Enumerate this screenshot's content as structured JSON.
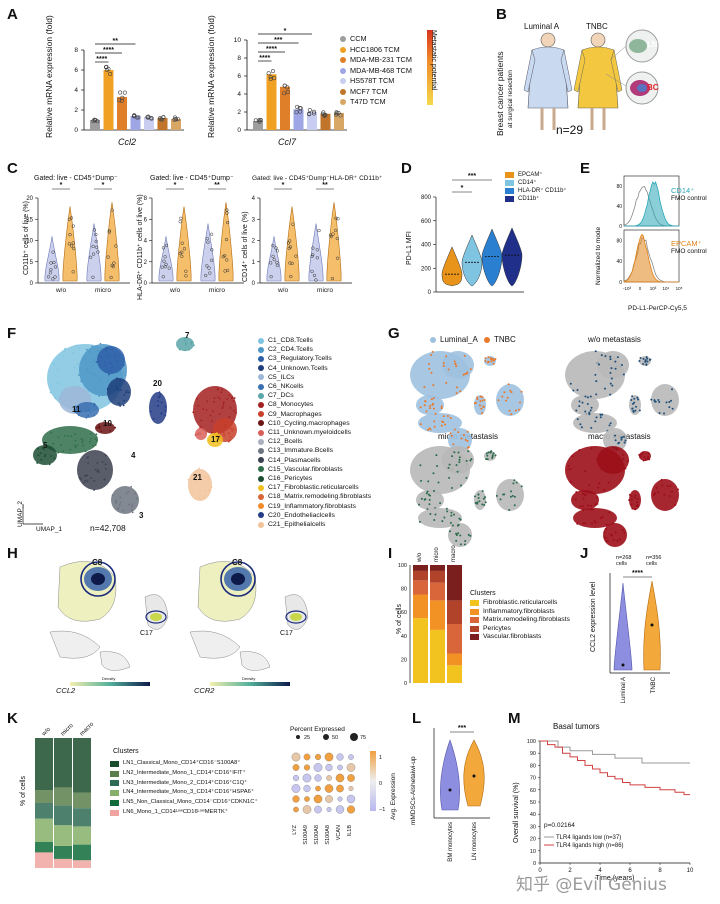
{
  "panel_labels": {
    "A": "A",
    "B": "B",
    "C": "C",
    "D": "D",
    "E": "E",
    "F": "F",
    "G": "G",
    "H": "H",
    "I": "I",
    "J": "J",
    "K": "K",
    "L": "L",
    "M": "M"
  },
  "panelA": {
    "ylabel": "Relative mRNA expression (fold)",
    "left_gene": "Ccl2",
    "right_gene": "Ccl7",
    "left_ticks": [
      "0",
      "2",
      "4",
      "6",
      "8"
    ],
    "right_ticks": [
      "0",
      "2",
      "4",
      "6",
      "8",
      "10"
    ],
    "left_sig": [
      "**",
      "****",
      "****"
    ],
    "right_sig": [
      "*",
      "***",
      "****",
      "****"
    ],
    "legend": [
      {
        "label": "CCM",
        "color": "#9e9e9e"
      },
      {
        "label": "HCC1806 TCM",
        "color": "#f0a023"
      },
      {
        "label": "MDA-MB-231 TCM",
        "color": "#e07f2a"
      },
      {
        "label": "MDA-MB-468 TCM",
        "color": "#9ea6e6"
      },
      {
        "label": "HS578T TCM",
        "color": "#c9cdf1"
      },
      {
        "label": "MCF7 TCM",
        "color": "#c0752a"
      },
      {
        "label": "T47D TCM",
        "color": "#d8a766"
      }
    ],
    "gradient_label": "Metastatic potential"
  },
  "chart_data": [
    {
      "type": "bar",
      "title": "",
      "gene": "Ccl2",
      "ylabel": "Relative mRNA expression (fold)",
      "ylim": [
        0,
        8
      ],
      "categories": [
        "CCM",
        "HCC1806 TCM",
        "MDA-MB-231 TCM",
        "MDA-MB-468 TCM",
        "HS578T TCM",
        "MCF7 TCM",
        "T47D TCM"
      ],
      "values": [
        1.0,
        6.0,
        3.3,
        1.4,
        1.3,
        1.2,
        1.1
      ]
    },
    {
      "type": "bar",
      "title": "",
      "gene": "Ccl7",
      "ylabel": "Relative mRNA expression (fold)",
      "ylim": [
        0,
        10
      ],
      "categories": [
        "CCM",
        "HCC1806 TCM",
        "MDA-MB-231 TCM",
        "MDA-MB-468 TCM",
        "HS578T TCM",
        "MCF7 TCM",
        "T47D TCM"
      ],
      "values": [
        1.0,
        6.2,
        4.8,
        2.3,
        2.0,
        1.8,
        1.9
      ]
    }
  ],
  "panelB": {
    "luminal": "Luminal A",
    "tnbc": "TNBC",
    "side": "Breast cancer patients",
    "side2": "at surgical resection",
    "n": "n=29",
    "ln": "LN",
    "bc": "BC"
  },
  "panelC": {
    "gates": [
      "Gated: live - CD45⁺Dump⁻",
      "Gated: live - CD45⁺Dump⁻",
      "Gated: live - CD45⁺Dump⁻HLA-DR⁺ CD11b⁺"
    ],
    "ylabels": [
      "CD11b⁺ cells of live (%)",
      "HLA-DR⁺ CD11b⁺ cells of live (%)",
      "CD14⁺ cells of live (%)"
    ],
    "xcats": [
      "w/o",
      "micro"
    ],
    "ticks1": [
      "0",
      "5",
      "10",
      "15",
      "20"
    ],
    "ticks2": [
      "0",
      "2",
      "4",
      "6",
      "8"
    ],
    "ticks3": [
      "0",
      "1",
      "2",
      "3",
      "4"
    ],
    "sig": [
      "*",
      "*",
      "*",
      "**",
      "*",
      "**"
    ]
  },
  "panelD": {
    "ylabel": "PD-L1 MFI",
    "ticks": [
      "0",
      "200",
      "400",
      "600",
      "800"
    ],
    "sig": [
      "***",
      "*"
    ],
    "legend": [
      {
        "label": "EPCAM⁺",
        "color": "#e8941a"
      },
      {
        "label": "CD14⁺",
        "color": "#7fc4e0"
      },
      {
        "label": "HLA-DR⁺ CD11b⁺",
        "color": "#2a7fd0"
      },
      {
        "label": "CD11b⁺",
        "color": "#1f2f8a"
      }
    ]
  },
  "panelE": {
    "ylabel": "Normalized to mode",
    "xlabel": "PD-L1-PerCP-Cy5,5",
    "top1": "CD14⁺",
    "top2": "FMO control",
    "bot1": "EPCAM⁺",
    "bot2": "FMO control",
    "ticks": [
      "0",
      "20",
      "40",
      "60",
      "80",
      "100"
    ],
    "xticks": [
      "-10³",
      "0",
      "10³",
      "10⁴",
      "10⁵"
    ]
  },
  "panelF": {
    "clusters": [
      {
        "label": "C1_CD8.Tcells",
        "color": "#7fc4e0"
      },
      {
        "label": "C2_CD4.Tcells",
        "color": "#4e96c8"
      },
      {
        "label": "C3_Regulatory.Tcells",
        "color": "#2e5fa8"
      },
      {
        "label": "C4_Unknown.Tcells",
        "color": "#1f3e7a"
      },
      {
        "label": "C5_ILCs",
        "color": "#9db7d8"
      },
      {
        "label": "C6_NKcells",
        "color": "#3a6fb0"
      },
      {
        "label": "C7_DCs",
        "color": "#5aa6a8"
      },
      {
        "label": "C8_Monocytes",
        "color": "#a32020"
      },
      {
        "label": "C9_Macrophages",
        "color": "#c8402a"
      },
      {
        "label": "C10_Cycling.macrophages",
        "color": "#6b1414"
      },
      {
        "label": "C11_Unknown.myeloidcells",
        "color": "#d9605a"
      },
      {
        "label": "C12_Bcells",
        "color": "#aab0bd"
      },
      {
        "label": "C13_Immature.Bcells",
        "color": "#6d7480"
      },
      {
        "label": "C14_Plasmacells",
        "color": "#3c4150"
      },
      {
        "label": "C15_Vascular.fibroblasts",
        "color": "#2f6e4a"
      },
      {
        "label": "C16_Pericytes",
        "color": "#1c4e33"
      },
      {
        "label": "C17_Fibroblastic.reticularcells",
        "color": "#f0c020"
      },
      {
        "label": "C18_Matrix.remodeling.fibroblasts",
        "color": "#d8663a"
      },
      {
        "label": "C19_Inflammatory.fibroblasts",
        "color": "#f08a2a"
      },
      {
        "label": "C20_Endotheliaclcells",
        "color": "#243c86"
      },
      {
        "label": "C21_Epithelialcells",
        "color": "#f2c39a"
      }
    ],
    "umap2": "UMAP_2",
    "umap1": "UMAP_1",
    "n": "n=42,708",
    "numbers": [
      "7",
      "20",
      "21",
      "10",
      "11",
      "5",
      "4",
      "3",
      "17"
    ]
  },
  "panelG": {
    "leg1": "Luminal_A",
    "leg2": "TNBC",
    "t2": "w/o metastasis",
    "t3": "micro metastasis",
    "t4": "macro metastasis",
    "c_lum": "#9fc1e0",
    "c_tnbc": "#e8792a",
    "c_grey": "#b8b8b8",
    "c_wo": "#1f4e78",
    "c_micro": "#2b6b4c",
    "c_macro": "#9c0f1a"
  },
  "panelH": {
    "g1": "CCL2",
    "g2": "CCR2",
    "c8": "C8",
    "c17": "C17",
    "density": "Density"
  },
  "panelI": {
    "xcats": [
      "w/o",
      "micro",
      "macro"
    ],
    "ylabel": "% of cells",
    "ticks": [
      "0",
      "20",
      "40",
      "60",
      "80",
      "100"
    ],
    "legend_title": "Clusters",
    "legend": [
      {
        "label": "Fibroblastic.reticularcells",
        "color": "#f2c21e"
      },
      {
        "label": "Inflammatory.fibroblasts",
        "color": "#f29224"
      },
      {
        "label": "Matrix.remodeling.fibroblasts",
        "color": "#d8663a"
      },
      {
        "label": "Pericytes",
        "color": "#b1432a"
      },
      {
        "label": "Vascular.fibroblasts",
        "color": "#7a1e1e"
      }
    ]
  },
  "panelJ": {
    "n1": "n=268",
    "n1b": "cells",
    "n2": "n=356",
    "n2b": "cells",
    "sig": "****",
    "ylabel": "CCL2 expression level",
    "x1": "Luminal A",
    "x2": "TNBC"
  },
  "panelK": {
    "xcats": [
      "w/o",
      "micro",
      "macro"
    ],
    "ylabel": "% of cells",
    "legend_title": "Clusters",
    "rows": [
      "LN1_Classical_Mono_CD14⁺CD16⁻S100A8⁺",
      "LN2_Intermediate_Mono_1_CD14⁺CD16⁺IFIT⁺",
      "LN3_Intermediate_Mono_2_CD14⁺CD16⁺C1Q⁺",
      "LN4_Intermediate_Mono_3_CD14⁺CD16⁺HSPA6⁺",
      "LN5_Non_Classical_Mono_CD14⁻CD16⁺CDKN1C⁺",
      "LN6_Mono_1_CD14ᴸᵒʷCD16ᴸᵒʷMERTK⁺"
    ],
    "row_colors": [
      "#1b4d2c",
      "#5a7f4a",
      "#2e6b55",
      "#86b06a",
      "#0e6b3a",
      "#f0a4a0"
    ],
    "genes": [
      "LYZ",
      "S100A9",
      "S100A8",
      "S100A8",
      "VCAN",
      "IL1B"
    ],
    "pct_title": "Percent Expressed",
    "pct": [
      "25",
      "50",
      "75"
    ],
    "avg": "Avg. Expression",
    "avg_ticks": [
      "1",
      "0",
      "−1"
    ]
  },
  "panelL": {
    "sig": "***",
    "ylabel": "mMDSCs-Alshetaiwi-up",
    "x1": "BM monocytes",
    "x2": "LN monocytes"
  },
  "panelM": {
    "title": "Basal tumors",
    "ylabel": "Overall survival (%)",
    "xlabel": "Time (years)",
    "p": "p=0.02164",
    "leg1": "TLR4 ligands low (n=37)",
    "leg2": "TLR4 ligands high (n=86)",
    "yticks": [
      "0",
      "10",
      "20",
      "30",
      "40",
      "50",
      "60",
      "70",
      "80",
      "90",
      "100"
    ],
    "xticks": [
      "0",
      "2",
      "4",
      "6",
      "8",
      "10"
    ]
  },
  "watermark": "知乎 @Evil Genius"
}
